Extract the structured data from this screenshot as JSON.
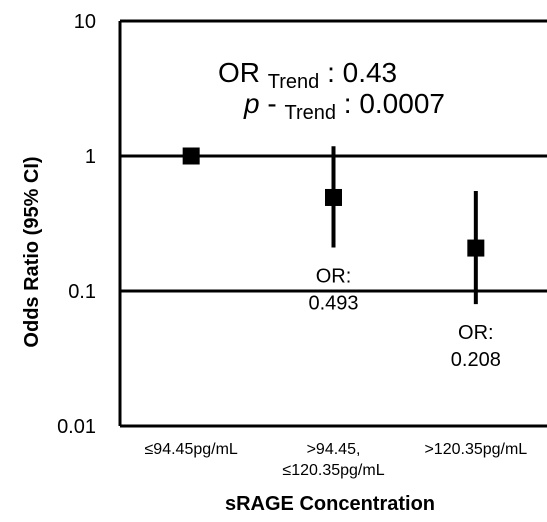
{
  "chart_data": {
    "type": "scatter",
    "xlabel": "sRAGE Concentration",
    "ylabel": "Odds Ratio (95% CI)",
    "y_scale": "log",
    "ylim": [
      0.01,
      10
    ],
    "y_ticks": [
      {
        "value": 0.01,
        "label": "0.01"
      },
      {
        "value": 0.1,
        "label": "0.1"
      },
      {
        "value": 1,
        "label": "1"
      },
      {
        "value": 10,
        "label": "10"
      }
    ],
    "categories": [
      {
        "lines": [
          "≤94.45pg/mL"
        ]
      },
      {
        "lines": [
          ">94.45,",
          "≤120.35pg/mL"
        ]
      },
      {
        "lines": [
          ">120.35pg/mL"
        ]
      }
    ],
    "points": [
      {
        "or": 1.0,
        "ci_low": null,
        "ci_high": null,
        "label": []
      },
      {
        "or": 0.493,
        "ci_low": 0.21,
        "ci_high": 1.18,
        "label": [
          "OR:",
          "0.493"
        ]
      },
      {
        "or": 0.208,
        "ci_low": 0.08,
        "ci_high": 0.55,
        "label": [
          "OR:",
          "0.208"
        ]
      }
    ],
    "reference_lines": [
      0.1,
      1
    ],
    "grid": false,
    "annotation": {
      "trend_or": {
        "prefix": "OR",
        "sub": "Trend",
        "suffix": ": 0.43"
      },
      "trend_p": {
        "prefix": "p",
        "dash": "-",
        "sub": "Trend",
        "suffix": ": 0.0007"
      }
    }
  }
}
